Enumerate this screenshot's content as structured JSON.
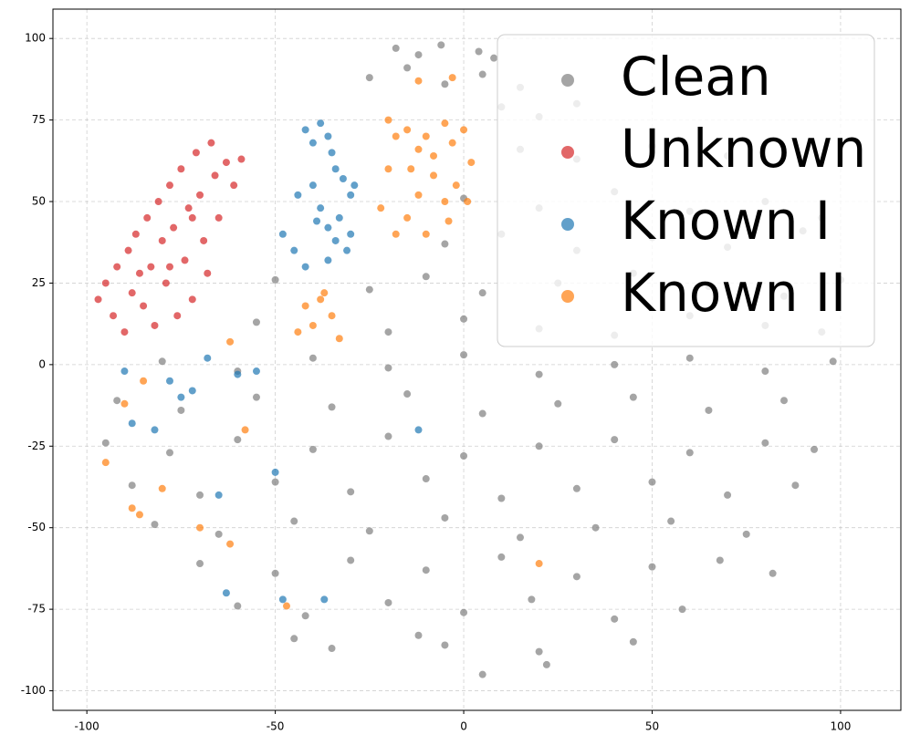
{
  "chart_data": {
    "type": "scatter",
    "xlim": [
      -109,
      116
    ],
    "ylim": [
      -106,
      109
    ],
    "xticks": [
      -100,
      -50,
      0,
      50,
      100
    ],
    "yticks": [
      -100,
      -75,
      -50,
      -25,
      0,
      25,
      50,
      75,
      100
    ],
    "grid": true,
    "legend": "upper right",
    "series": [
      {
        "name": "Clean",
        "color": "#7f7f7f",
        "x": [
          -18,
          -12,
          -6,
          4,
          8,
          -25,
          -15,
          -5,
          5,
          15,
          10,
          20,
          30,
          15,
          30,
          50,
          70,
          0,
          20,
          40,
          60,
          80,
          95,
          -5,
          10,
          30,
          50,
          70,
          90,
          -50,
          -25,
          -10,
          5,
          25,
          45,
          65,
          85,
          100,
          -55,
          -20,
          0,
          20,
          40,
          60,
          80,
          95,
          -80,
          -60,
          -40,
          -20,
          0,
          20,
          40,
          60,
          80,
          98,
          -92,
          -75,
          -55,
          -35,
          -15,
          5,
          25,
          45,
          65,
          85,
          -95,
          -78,
          -60,
          -40,
          -20,
          0,
          20,
          40,
          60,
          80,
          93,
          -88,
          -70,
          -50,
          -30,
          -10,
          10,
          30,
          50,
          70,
          88,
          -82,
          -65,
          -45,
          -25,
          -5,
          15,
          35,
          55,
          75,
          -70,
          -50,
          -30,
          -10,
          10,
          30,
          50,
          68,
          82,
          -60,
          -42,
          -20,
          0,
          18,
          40,
          58,
          -45,
          -35,
          -12,
          -5,
          20,
          45,
          5,
          22
        ],
        "y": [
          97,
          95,
          98,
          96,
          94,
          88,
          91,
          86,
          89,
          85,
          79,
          76,
          80,
          66,
          63,
          67,
          64,
          51,
          48,
          53,
          47,
          50,
          45,
          37,
          40,
          35,
          39,
          36,
          41,
          26,
          23,
          27,
          22,
          25,
          28,
          24,
          21,
          26,
          13,
          10,
          14,
          11,
          9,
          15,
          12,
          10,
          1,
          -2,
          2,
          -1,
          3,
          -3,
          0,
          2,
          -2,
          1,
          -11,
          -14,
          -10,
          -13,
          -9,
          -15,
          -12,
          -10,
          -14,
          -11,
          -24,
          -27,
          -23,
          -26,
          -22,
          -28,
          -25,
          -23,
          -27,
          -24,
          -26,
          -37,
          -40,
          -36,
          -39,
          -35,
          -41,
          -38,
          -36,
          -40,
          -37,
          -49,
          -52,
          -48,
          -51,
          -47,
          -53,
          -50,
          -48,
          -52,
          -61,
          -64,
          -60,
          -63,
          -59,
          -65,
          -62,
          -60,
          -64,
          -74,
          -77,
          -73,
          -76,
          -72,
          -78,
          -75,
          -84,
          -87,
          -83,
          -86,
          -88,
          -85,
          -95,
          -92
        ]
      },
      {
        "name": "Unknown",
        "color": "#d62728",
        "x": [
          -97,
          -95,
          -93,
          -92,
          -90,
          -89,
          -88,
          -87,
          -85,
          -84,
          -83,
          -82,
          -81,
          -80,
          -79,
          -78,
          -77,
          -76,
          -75,
          -74,
          -73,
          -72,
          -71,
          -70,
          -69,
          -68,
          -67,
          -66,
          -65,
          -63,
          -61,
          -59,
          -72,
          -78,
          -86
        ],
        "y": [
          20,
          25,
          15,
          30,
          10,
          35,
          22,
          40,
          18,
          45,
          30,
          12,
          50,
          38,
          25,
          55,
          42,
          15,
          60,
          32,
          48,
          20,
          65,
          52,
          38,
          28,
          68,
          58,
          45,
          62,
          55,
          63,
          45,
          30,
          28
        ]
      },
      {
        "name": "Known I",
        "color": "#1f77b4",
        "x": [
          -42,
          -40,
          -38,
          -36,
          -35,
          -34,
          -32,
          -30,
          -38,
          -36,
          -34,
          -33,
          -31,
          -40,
          -44,
          -48,
          -45,
          -42,
          -30,
          -29,
          -36,
          -39,
          -72,
          -75,
          -78,
          -60,
          -55,
          -82,
          -88,
          -65,
          -50,
          -63,
          -48,
          -37,
          -12,
          -90,
          -68
        ],
        "y": [
          72,
          68,
          74,
          70,
          65,
          60,
          57,
          52,
          48,
          42,
          38,
          45,
          35,
          55,
          52,
          40,
          35,
          30,
          40,
          55,
          32,
          44,
          -8,
          -10,
          -5,
          -3,
          -2,
          -20,
          -18,
          -40,
          -33,
          -70,
          -72,
          -72,
          -20,
          -2,
          2
        ]
      },
      {
        "name": "Known II",
        "color": "#ff7f0e",
        "x": [
          -20,
          -18,
          -15,
          -12,
          -10,
          -8,
          -5,
          -3,
          0,
          2,
          -2,
          -5,
          -8,
          -12,
          -15,
          -18,
          -20,
          -22,
          -4,
          1,
          -10,
          -14,
          -42,
          -40,
          -38,
          -35,
          -33,
          -44,
          -37,
          -95,
          -88,
          -86,
          -80,
          -70,
          -62,
          -58,
          -47,
          -62,
          -85,
          -90,
          20,
          -12,
          -3
        ],
        "y": [
          75,
          70,
          72,
          66,
          70,
          64,
          74,
          68,
          72,
          62,
          55,
          50,
          58,
          52,
          45,
          40,
          60,
          48,
          44,
          50,
          40,
          60,
          18,
          12,
          20,
          15,
          8,
          10,
          22,
          -30,
          -44,
          -46,
          -38,
          -50,
          -55,
          -20,
          -74,
          7,
          -5,
          -12,
          -61,
          87,
          88
        ]
      }
    ]
  }
}
